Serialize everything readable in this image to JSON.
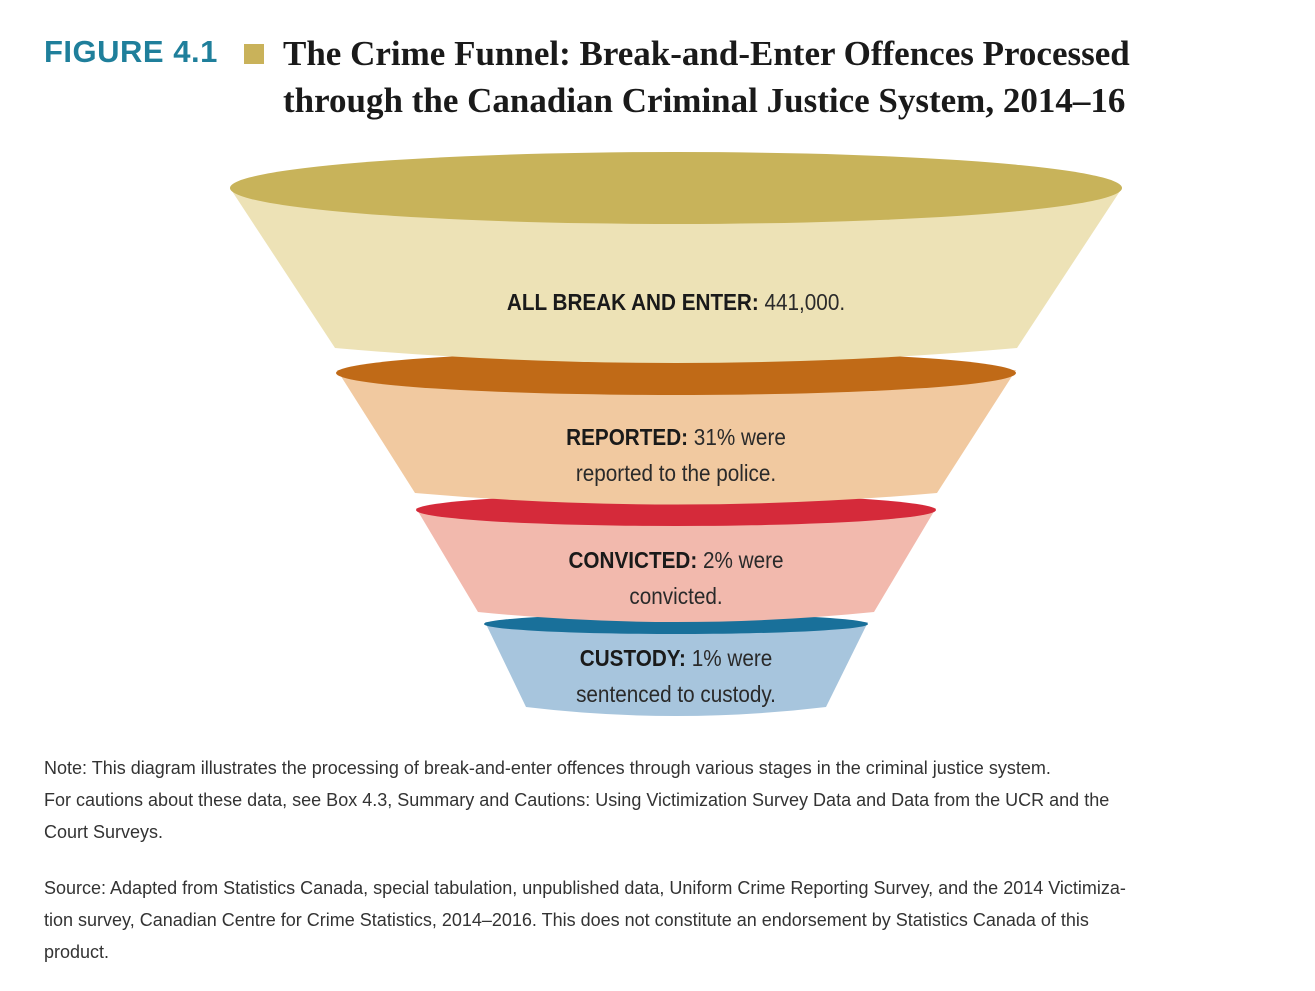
{
  "figure": {
    "label": "FIGURE 4.1",
    "title_line1": "The Crime Funnel: Break-and-Enter Offences Processed",
    "title_line2": "through the Canadian Criminal Justice System, 2014–16",
    "accent_color": "#1f7f9b",
    "square_color": "#c9b25a"
  },
  "funnel": {
    "stages": [
      {
        "label": "ALL BREAK AND ENTER:",
        "line1_rest": "441,000.",
        "line2": "",
        "body_color": "#ede2b6",
        "rim_color": "#c8b35a"
      },
      {
        "label": "REPORTED:",
        "line1_rest": "31% were",
        "line2": "reported to the police.",
        "body_color": "#f1c9a0",
        "rim_color": "#c06a17"
      },
      {
        "label": "CONVICTED:",
        "line1_rest": "2% were",
        "line2": "convicted.",
        "body_color": "#f2b9ad",
        "rim_color": "#d52a3a"
      },
      {
        "label": "CUSTODY:",
        "line1_rest": "1% were",
        "line2": "sentenced to custody.",
        "body_color": "#a7c5dd",
        "rim_color": "#19709a"
      }
    ]
  },
  "note": {
    "line1": "Note: This diagram illustrates the processing of break-and-enter offences through various stages in the criminal justice system.",
    "line2": "For cautions about these data, see Box 4.3, Summary and Cautions: Using Victimization Survey Data and Data from the UCR and the",
    "line3": "Court Surveys."
  },
  "source": {
    "line1": "Source: Adapted from Statistics Canada, special tabulation, unpublished data, Uniform Crime Reporting  Survey, and the 2014 Victimiza-",
    "line2": "tion survey, Canadian Centre for Crime Statistics, 2014–2016. This does not constitute an endorsement by Statistics Canada of this",
    "line3": "product."
  }
}
